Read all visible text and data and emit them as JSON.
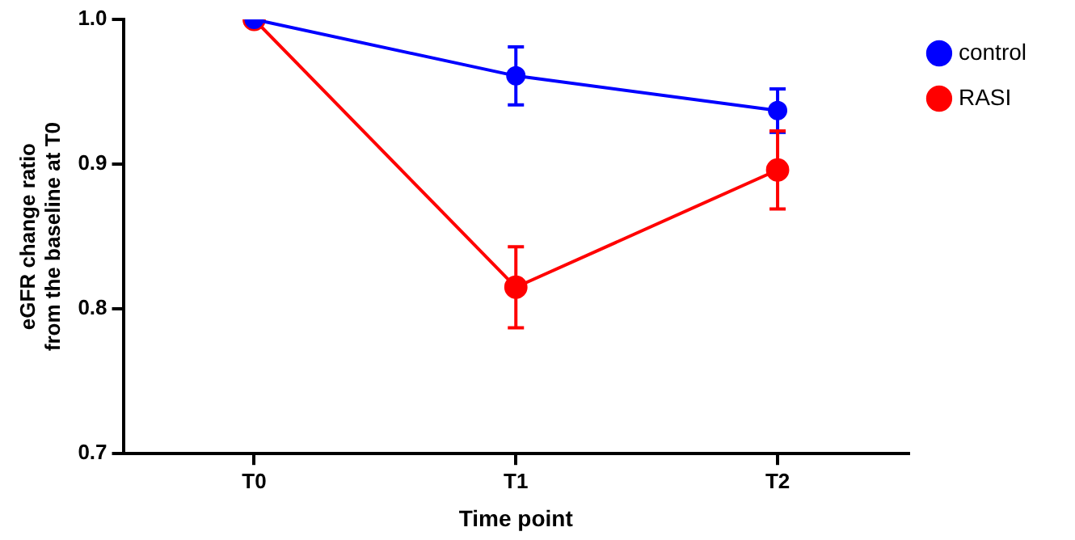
{
  "chart_data": {
    "type": "line",
    "xlabel": "Time point",
    "ylabel": "eGFR change ratio from the baseline at T0",
    "categories": [
      "T0",
      "T1",
      "T2"
    ],
    "series": [
      {
        "name": "control",
        "color": "#0000ff",
        "values": [
          1.0,
          0.961,
          0.937
        ],
        "errors": [
          null,
          0.02,
          0.015
        ]
      },
      {
        "name": "RASI",
        "color": "#ff0000",
        "values": [
          1.0,
          0.815,
          0.896
        ],
        "errors": [
          null,
          0.028,
          0.027
        ]
      }
    ],
    "ylim": [
      0.7,
      1.0
    ],
    "yticks": [
      {
        "value": 0.7,
        "label": "0.7"
      },
      {
        "value": 0.8,
        "label": "0.8"
      },
      {
        "value": 0.9,
        "label": "0.9"
      },
      {
        "value": 1,
        "label": "1.0"
      }
    ],
    "grid": false,
    "legend": "right",
    "marker": "circle",
    "line_style": "solid"
  }
}
